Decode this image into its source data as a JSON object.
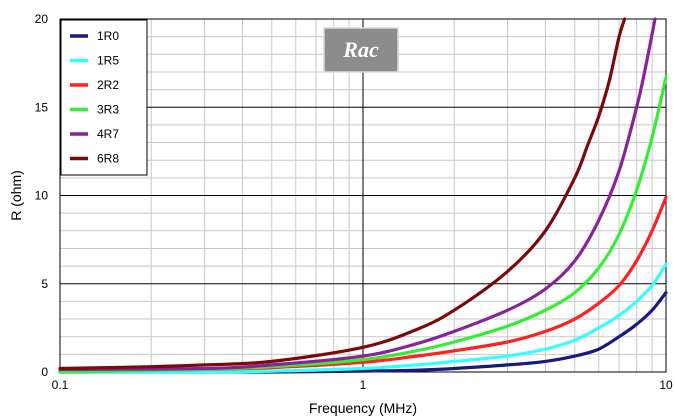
{
  "chart_data": {
    "type": "line",
    "title": "Rac",
    "xlabel": "Frequency (MHz)",
    "ylabel": "R (ohm)",
    "x_scale": "log",
    "xlim": [
      0.1,
      10
    ],
    "ylim": [
      0,
      20
    ],
    "x_ticks": [
      "0.1",
      "1",
      "10"
    ],
    "y_ticks": [
      "0",
      "5",
      "10",
      "15",
      "20"
    ],
    "grid": true,
    "legend_position": "top-left",
    "series": [
      {
        "name": "1R0",
        "color": "#1a1a7a",
        "x": [
          0.1,
          0.3,
          0.5,
          1,
          1.5,
          2,
          3,
          4,
          5,
          6,
          7,
          8,
          9,
          10
        ],
        "y": [
          0,
          0,
          0,
          0.05,
          0.1,
          0.2,
          0.4,
          0.6,
          0.9,
          1.3,
          2.0,
          2.7,
          3.5,
          4.5
        ]
      },
      {
        "name": "1R5",
        "color": "#33ffff",
        "x": [
          0.1,
          0.3,
          0.5,
          1,
          1.5,
          2,
          3,
          4,
          5,
          6,
          7,
          8,
          9,
          10
        ],
        "y": [
          0,
          0,
          0.05,
          0.2,
          0.4,
          0.6,
          0.9,
          1.3,
          1.8,
          2.5,
          3.2,
          4.0,
          4.9,
          6.1
        ]
      },
      {
        "name": "2R2",
        "color": "#ff2020",
        "x": [
          0.1,
          0.3,
          0.5,
          1,
          1.5,
          2,
          3,
          4,
          5,
          6,
          7,
          8,
          9,
          10
        ],
        "y": [
          0.1,
          0.15,
          0.25,
          0.55,
          0.9,
          1.2,
          1.7,
          2.3,
          3.0,
          3.9,
          4.9,
          6.3,
          8.0,
          9.9
        ]
      },
      {
        "name": "3R3",
        "color": "#33ee33",
        "x": [
          0.1,
          0.3,
          0.5,
          1,
          1.5,
          2,
          3,
          4,
          5,
          6,
          7,
          8,
          9,
          10
        ],
        "y": [
          0,
          0.15,
          0.3,
          0.7,
          1.2,
          1.7,
          2.6,
          3.5,
          4.5,
          5.9,
          7.8,
          10.3,
          13.3,
          16.7
        ]
      },
      {
        "name": "4R7",
        "color": "#882299",
        "x": [
          0.1,
          0.3,
          0.5,
          1,
          1.5,
          2,
          3,
          4,
          5,
          6,
          7,
          8,
          8.5,
          9.2
        ],
        "y": [
          0.15,
          0.2,
          0.4,
          0.9,
          1.6,
          2.3,
          3.5,
          4.7,
          6.3,
          8.6,
          11.4,
          15.0,
          17.0,
          20.0
        ]
      },
      {
        "name": "6R8",
        "color": "#7a0a0a",
        "x": [
          0.1,
          0.2,
          0.3,
          0.5,
          1,
          1.5,
          2,
          3,
          4,
          5,
          5.5,
          6,
          6.5,
          7,
          7.3
        ],
        "y": [
          0.2,
          0.3,
          0.4,
          0.6,
          1.4,
          2.4,
          3.5,
          5.7,
          8.0,
          11.0,
          12.8,
          14.5,
          16.5,
          19.0,
          20.0
        ]
      }
    ]
  }
}
